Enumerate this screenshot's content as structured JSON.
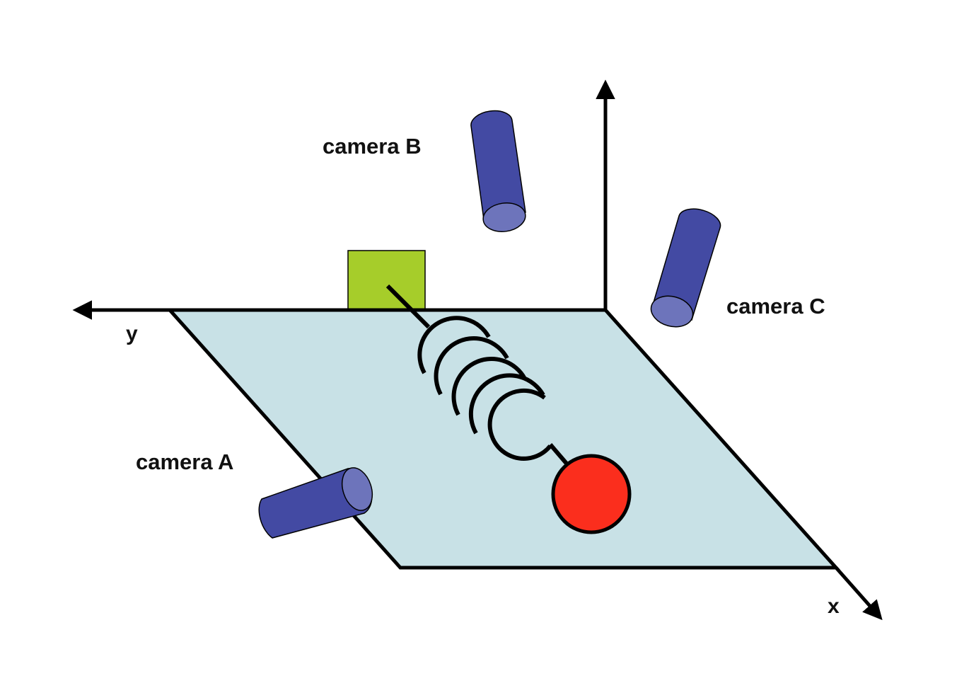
{
  "labels": {
    "camera_a": "camera A",
    "camera_b": "camera B",
    "camera_c": "camera C",
    "axis_x": "x",
    "axis_y": "y"
  },
  "colors": {
    "plane": "#c8e1e6",
    "camera_body": "#434aa3",
    "camera_lens": "#6d74bb",
    "anchor_block": "#a6cd2a",
    "mass": "#fb2e1d",
    "stroke": "#000000"
  }
}
